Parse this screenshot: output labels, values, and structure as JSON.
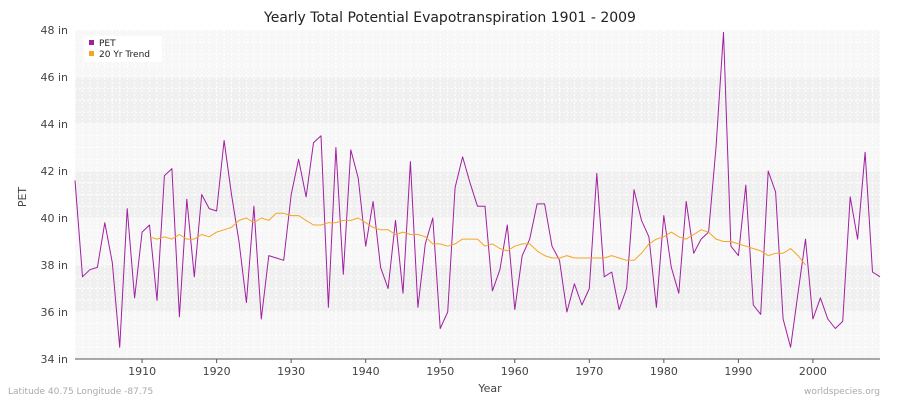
{
  "chart_data": {
    "type": "line",
    "title": "Yearly Total Potential Evapotranspiration 1901 - 2009",
    "xlabel": "Year",
    "ylabel": "PET",
    "xlim": [
      1901,
      2009
    ],
    "ylim": [
      34,
      48
    ],
    "y_unit": "in",
    "y_ticks": [
      34,
      36,
      38,
      40,
      42,
      44,
      46,
      48
    ],
    "x_ticks": [
      1910,
      1920,
      1930,
      1940,
      1950,
      1960,
      1970,
      1980,
      1990,
      2000
    ],
    "grid": true,
    "legend_position": "top-left",
    "series": [
      {
        "name": "PET",
        "color": "#a020a0",
        "x": [
          1901,
          1902,
          1903,
          1904,
          1905,
          1906,
          1907,
          1908,
          1909,
          1910,
          1911,
          1912,
          1913,
          1914,
          1915,
          1916,
          1917,
          1918,
          1919,
          1920,
          1921,
          1922,
          1923,
          1924,
          1925,
          1926,
          1927,
          1928,
          1929,
          1930,
          1931,
          1932,
          1933,
          1934,
          1935,
          1936,
          1937,
          1938,
          1939,
          1940,
          1941,
          1942,
          1943,
          1944,
          1945,
          1946,
          1947,
          1948,
          1949,
          1950,
          1951,
          1952,
          1953,
          1954,
          1955,
          1956,
          1957,
          1958,
          1959,
          1960,
          1961,
          1962,
          1963,
          1964,
          1965,
          1966,
          1967,
          1968,
          1969,
          1970,
          1971,
          1972,
          1973,
          1974,
          1975,
          1976,
          1977,
          1978,
          1979,
          1980,
          1981,
          1982,
          1983,
          1984,
          1985,
          1986,
          1987,
          1988,
          1989,
          1990,
          1991,
          1992,
          1993,
          1994,
          1995,
          1996,
          1997,
          1998,
          1999,
          2000,
          2001,
          2002,
          2003,
          2004,
          2005,
          2006,
          2007,
          2008,
          2009
        ],
        "values": [
          41.6,
          37.5,
          37.8,
          37.9,
          39.8,
          38.1,
          34.5,
          40.4,
          36.6,
          39.4,
          39.7,
          36.5,
          41.8,
          42.1,
          35.8,
          40.8,
          37.5,
          41.0,
          40.4,
          40.3,
          43.3,
          41.0,
          39.0,
          36.4,
          40.5,
          35.7,
          38.4,
          38.3,
          38.2,
          41.0,
          42.5,
          40.9,
          43.2,
          43.5,
          36.2,
          43.0,
          37.6,
          42.9,
          41.7,
          38.8,
          40.7,
          37.9,
          37.0,
          39.9,
          36.8,
          42.4,
          36.2,
          38.9,
          40.0,
          35.3,
          36.0,
          41.3,
          42.6,
          41.5,
          40.5,
          40.5,
          36.9,
          37.8,
          39.7,
          36.1,
          38.4,
          39.1,
          40.6,
          40.6,
          38.8,
          38.2,
          36.0,
          37.2,
          36.3,
          37.0,
          41.9,
          37.5,
          37.7,
          36.1,
          37.0,
          41.2,
          39.9,
          39.2,
          36.2,
          40.1,
          37.9,
          36.8,
          40.7,
          38.5,
          39.1,
          39.4,
          43.0,
          47.9,
          38.8,
          38.4,
          41.4,
          36.3,
          35.9,
          42.0,
          41.1,
          35.7,
          34.5,
          36.8,
          39.1,
          35.7,
          36.6,
          35.7,
          35.3,
          35.6,
          40.9,
          39.1,
          42.8,
          37.7,
          37.5
        ]
      },
      {
        "name": "20 Yr Trend",
        "color": "#f5a623",
        "x": [
          1911,
          1912,
          1913,
          1914,
          1915,
          1916,
          1917,
          1918,
          1919,
          1920,
          1921,
          1922,
          1923,
          1924,
          1925,
          1926,
          1927,
          1928,
          1929,
          1930,
          1931,
          1932,
          1933,
          1934,
          1935,
          1936,
          1937,
          1938,
          1939,
          1940,
          1941,
          1942,
          1943,
          1944,
          1945,
          1946,
          1947,
          1948,
          1949,
          1950,
          1951,
          1952,
          1953,
          1954,
          1955,
          1956,
          1957,
          1958,
          1959,
          1960,
          1961,
          1962,
          1963,
          1964,
          1965,
          1966,
          1967,
          1968,
          1969,
          1970,
          1971,
          1972,
          1973,
          1974,
          1975,
          1976,
          1977,
          1978,
          1979,
          1980,
          1981,
          1982,
          1983,
          1984,
          1985,
          1986,
          1987,
          1988,
          1989,
          1990,
          1991,
          1992,
          1993,
          1994,
          1995,
          1996,
          1997,
          1998,
          1999
        ],
        "values": [
          39.2,
          39.1,
          39.2,
          39.1,
          39.3,
          39.1,
          39.1,
          39.3,
          39.2,
          39.4,
          39.5,
          39.6,
          39.9,
          40.0,
          39.8,
          40.0,
          39.9,
          40.2,
          40.2,
          40.1,
          40.1,
          39.9,
          39.7,
          39.7,
          39.8,
          39.8,
          39.9,
          39.9,
          40.0,
          39.8,
          39.6,
          39.5,
          39.5,
          39.3,
          39.4,
          39.3,
          39.3,
          39.2,
          38.9,
          38.9,
          38.8,
          38.9,
          39.1,
          39.1,
          39.1,
          38.8,
          38.9,
          38.7,
          38.6,
          38.8,
          38.9,
          38.9,
          38.6,
          38.4,
          38.3,
          38.3,
          38.4,
          38.3,
          38.3,
          38.3,
          38.3,
          38.3,
          38.4,
          38.3,
          38.2,
          38.2,
          38.5,
          38.9,
          39.1,
          39.2,
          39.4,
          39.2,
          39.1,
          39.3,
          39.5,
          39.4,
          39.1,
          39.0,
          39.0,
          38.9,
          38.8,
          38.7,
          38.6,
          38.4,
          38.5,
          38.5,
          38.7,
          38.4,
          38.0
        ]
      }
    ]
  },
  "footer": {
    "location": "Latitude 40.75 Longitude -87.75",
    "source": "worldspecies.org"
  }
}
